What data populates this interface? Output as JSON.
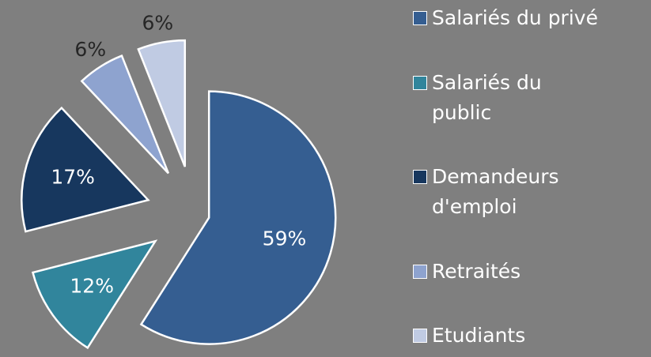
{
  "chart_data": {
    "type": "pie",
    "categories": [
      "Salariés du privé",
      "Salariés du public",
      "Demandeurs d'emploi",
      "Retraités",
      "Etudiants"
    ],
    "values": [
      59,
      12,
      17,
      6,
      6
    ],
    "value_labels": [
      "59%",
      "12%",
      "17%",
      "6%",
      "6%"
    ],
    "colors": [
      "#355e91",
      "#31859c",
      "#17375e",
      "#8ea3cf",
      "#c0cbe3"
    ],
    "legend": "right"
  }
}
